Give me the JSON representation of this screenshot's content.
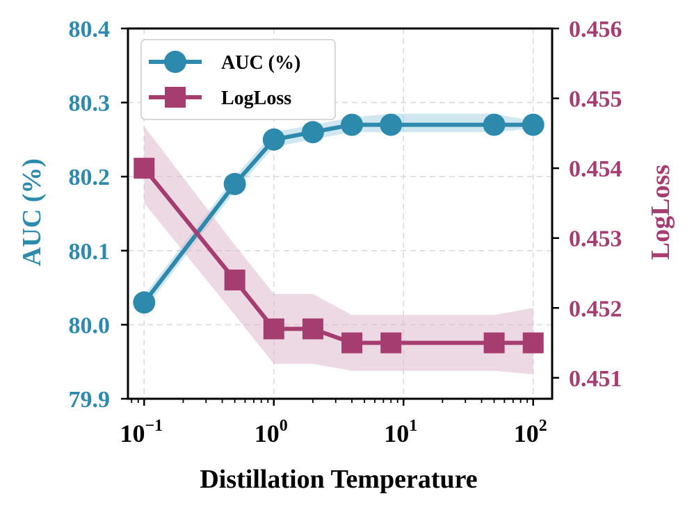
{
  "chart_data": {
    "type": "line",
    "xlabel": "Distillation Temperature",
    "xscale": "log",
    "xlim": [
      0.075,
      140
    ],
    "x_ticks": [
      {
        "base": "10",
        "exp": "−1",
        "value": 0.1
      },
      {
        "base": "10",
        "exp": "0",
        "value": 1
      },
      {
        "base": "10",
        "exp": "1",
        "value": 10
      },
      {
        "base": "10",
        "exp": "2",
        "value": 100
      }
    ],
    "x": [
      0.1,
      0.5,
      1,
      2,
      4,
      8,
      50,
      100
    ],
    "grid": true,
    "legend_position": "top-left",
    "left_axis": {
      "label": "AUC (%)",
      "ylim": [
        79.9,
        80.4
      ],
      "ticks": [
        "79.9",
        "80.0",
        "80.1",
        "80.2",
        "80.3",
        "80.4"
      ],
      "color": "#2e8aad"
    },
    "right_axis": {
      "label": "LogLoss",
      "ylim": [
        0.4507,
        0.456
      ],
      "ticks": [
        "0.451",
        "0.452",
        "0.453",
        "0.454",
        "0.455",
        "0.456"
      ],
      "color": "#a63d71"
    },
    "series": [
      {
        "name": "AUC (%)",
        "axis": "left",
        "marker": "circle",
        "color": "#2e8aad",
        "band_color": "#a9d3e4",
        "values": [
          80.03,
          80.19,
          80.25,
          80.26,
          80.27,
          80.27,
          80.27,
          80.27
        ],
        "band_lower": [
          80.02,
          80.18,
          80.24,
          80.25,
          80.26,
          80.26,
          80.26,
          80.265
        ],
        "band_upper": [
          80.04,
          80.2,
          80.26,
          80.27,
          80.28,
          80.285,
          80.285,
          80.275
        ]
      },
      {
        "name": "LogLoss",
        "axis": "right",
        "marker": "square",
        "color": "#a63d71",
        "band_color": "#dfb9cc",
        "values": [
          0.454,
          0.4524,
          0.4517,
          0.4517,
          0.4515,
          0.4515,
          0.4515,
          0.4515
        ],
        "band_lower": [
          0.4535,
          0.4519,
          0.4512,
          0.4512,
          0.4511,
          0.4511,
          0.4511,
          0.45105
        ],
        "band_upper": [
          0.4546,
          0.4529,
          0.4522,
          0.4522,
          0.4519,
          0.4519,
          0.4519,
          0.452
        ]
      }
    ]
  }
}
